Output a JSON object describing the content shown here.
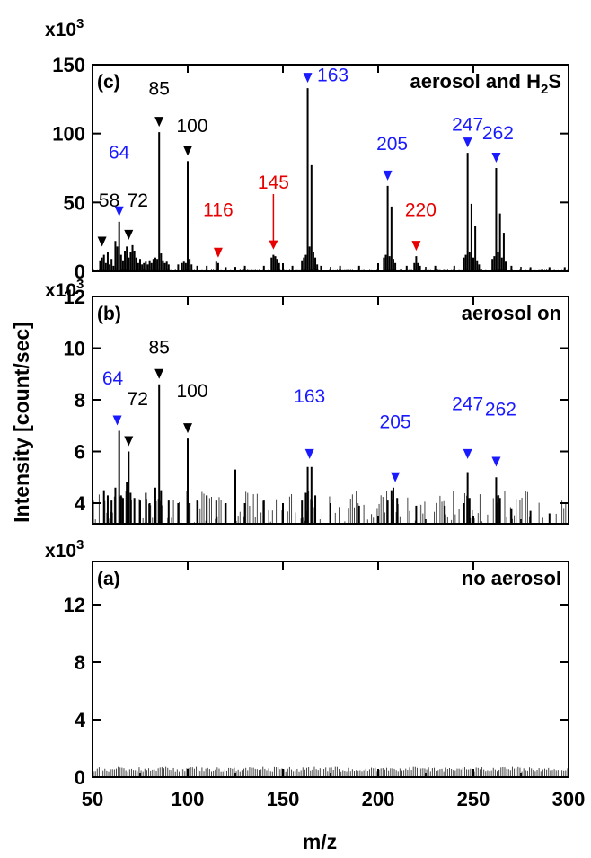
{
  "chart_data": {
    "type": "bar",
    "xlabel": "m/z",
    "ylabel": "Intensity [count/sec]",
    "xlim": [
      50,
      300
    ],
    "x_ticks": [
      "50",
      "100",
      "150",
      "200",
      "250",
      "300"
    ],
    "panels": [
      {
        "tag": "(c)",
        "condition": "aerosol and H",
        "condition_sub": "2",
        "condition_tail": "S",
        "multiplier": "x10",
        "multiplier_exp": "3",
        "ylim": [
          0,
          150
        ],
        "y_ticks": [
          "0",
          "50",
          "100",
          "150"
        ],
        "baseline": 1.5,
        "peaks": [
          {
            "x": 54,
            "y": 8
          },
          {
            "x": 55,
            "y": 10
          },
          {
            "x": 56,
            "y": 12
          },
          {
            "x": 57,
            "y": 6
          },
          {
            "x": 58,
            "y": 14
          },
          {
            "x": 59,
            "y": 5
          },
          {
            "x": 60,
            "y": 9
          },
          {
            "x": 61,
            "y": 4
          },
          {
            "x": 62,
            "y": 22
          },
          {
            "x": 63,
            "y": 18
          },
          {
            "x": 64,
            "y": 36
          },
          {
            "x": 65,
            "y": 12
          },
          {
            "x": 66,
            "y": 8
          },
          {
            "x": 67,
            "y": 15
          },
          {
            "x": 68,
            "y": 18
          },
          {
            "x": 69,
            "y": 10
          },
          {
            "x": 70,
            "y": 14
          },
          {
            "x": 71,
            "y": 19
          },
          {
            "x": 72,
            "y": 15
          },
          {
            "x": 73,
            "y": 10
          },
          {
            "x": 74,
            "y": 6
          },
          {
            "x": 75,
            "y": 9
          },
          {
            "x": 76,
            "y": 5
          },
          {
            "x": 77,
            "y": 6
          },
          {
            "x": 78,
            "y": 7
          },
          {
            "x": 79,
            "y": 5
          },
          {
            "x": 80,
            "y": 8
          },
          {
            "x": 81,
            "y": 6
          },
          {
            "x": 82,
            "y": 9
          },
          {
            "x": 83,
            "y": 10
          },
          {
            "x": 84,
            "y": 9
          },
          {
            "x": 85,
            "y": 101
          },
          {
            "x": 86,
            "y": 13
          },
          {
            "x": 87,
            "y": 8
          },
          {
            "x": 88,
            "y": 6
          },
          {
            "x": 89,
            "y": 7
          },
          {
            "x": 90,
            "y": 5
          },
          {
            "x": 95,
            "y": 5
          },
          {
            "x": 97,
            "y": 6
          },
          {
            "x": 98,
            "y": 7
          },
          {
            "x": 99,
            "y": 6
          },
          {
            "x": 100,
            "y": 80
          },
          {
            "x": 101,
            "y": 9
          },
          {
            "x": 102,
            "y": 5
          },
          {
            "x": 105,
            "y": 4
          },
          {
            "x": 110,
            "y": 4
          },
          {
            "x": 115,
            "y": 7
          },
          {
            "x": 116,
            "y": 6
          },
          {
            "x": 120,
            "y": 3
          },
          {
            "x": 125,
            "y": 3
          },
          {
            "x": 130,
            "y": 4
          },
          {
            "x": 140,
            "y": 4
          },
          {
            "x": 144,
            "y": 10
          },
          {
            "x": 145,
            "y": 12
          },
          {
            "x": 146,
            "y": 11
          },
          {
            "x": 147,
            "y": 9
          },
          {
            "x": 148,
            "y": 6
          },
          {
            "x": 150,
            "y": 5
          },
          {
            "x": 155,
            "y": 4
          },
          {
            "x": 160,
            "y": 8
          },
          {
            "x": 161,
            "y": 10
          },
          {
            "x": 162,
            "y": 12
          },
          {
            "x": 163,
            "y": 133
          },
          {
            "x": 164,
            "y": 18
          },
          {
            "x": 165,
            "y": 77
          },
          {
            "x": 166,
            "y": 14
          },
          {
            "x": 167,
            "y": 10
          },
          {
            "x": 168,
            "y": 5
          },
          {
            "x": 170,
            "y": 4
          },
          {
            "x": 180,
            "y": 4
          },
          {
            "x": 190,
            "y": 4
          },
          {
            "x": 200,
            "y": 4
          },
          {
            "x": 203,
            "y": 10
          },
          {
            "x": 204,
            "y": 12
          },
          {
            "x": 205,
            "y": 62
          },
          {
            "x": 206,
            "y": 11
          },
          {
            "x": 207,
            "y": 47
          },
          {
            "x": 208,
            "y": 9
          },
          {
            "x": 209,
            "y": 6
          },
          {
            "x": 215,
            "y": 4
          },
          {
            "x": 219,
            "y": 6
          },
          {
            "x": 220,
            "y": 11
          },
          {
            "x": 221,
            "y": 6
          },
          {
            "x": 222,
            "y": 4
          },
          {
            "x": 230,
            "y": 4
          },
          {
            "x": 240,
            "y": 4
          },
          {
            "x": 245,
            "y": 10
          },
          {
            "x": 246,
            "y": 12
          },
          {
            "x": 247,
            "y": 86
          },
          {
            "x": 248,
            "y": 14
          },
          {
            "x": 249,
            "y": 49
          },
          {
            "x": 250,
            "y": 10
          },
          {
            "x": 251,
            "y": 33
          },
          {
            "x": 252,
            "y": 8
          },
          {
            "x": 253,
            "y": 5
          },
          {
            "x": 260,
            "y": 9
          },
          {
            "x": 261,
            "y": 11
          },
          {
            "x": 262,
            "y": 75
          },
          {
            "x": 263,
            "y": 14
          },
          {
            "x": 264,
            "y": 42
          },
          {
            "x": 265,
            "y": 10
          },
          {
            "x": 266,
            "y": 28
          },
          {
            "x": 267,
            "y": 7
          },
          {
            "x": 270,
            "y": 4
          },
          {
            "x": 280,
            "y": 3
          },
          {
            "x": 290,
            "y": 3
          },
          {
            "x": 298,
            "y": 3
          }
        ],
        "annotations": [
          {
            "label": "58",
            "x": 55,
            "y": 14,
            "color": "#000000",
            "text_dx": 8,
            "text_y": 47
          },
          {
            "label": "64",
            "x": 64,
            "y": 36,
            "color": "#1a1aff",
            "text_dx": 0,
            "text_y": 82
          },
          {
            "label": "72",
            "x": 69,
            "y": 19,
            "color": "#000000",
            "text_dx": 10,
            "text_y": 47
          },
          {
            "label": "85",
            "x": 85,
            "y": 101,
            "color": "#000000",
            "text_dx": 0,
            "text_y": 128
          },
          {
            "label": "100",
            "x": 100,
            "y": 80,
            "color": "#000000",
            "text_dx": 5,
            "text_y": 101
          },
          {
            "label": "116",
            "x": 116,
            "y": 6,
            "color": "#e60000",
            "text_dx": 0,
            "text_y": 40
          },
          {
            "label": "145",
            "x": 145,
            "y": 12,
            "color": "#e60000",
            "text_dx": 0,
            "text_y": 60
          },
          {
            "label": "163",
            "x": 163,
            "y": 133,
            "color": "#1a1aff",
            "text_dx": 28,
            "text_y": 138
          },
          {
            "label": "205",
            "x": 205,
            "y": 62,
            "color": "#1a1aff",
            "text_dx": 5,
            "text_y": 88
          },
          {
            "label": "220",
            "x": 220,
            "y": 11,
            "color": "#e60000",
            "text_dx": 5,
            "text_y": 40
          },
          {
            "label": "247",
            "x": 247,
            "y": 86,
            "color": "#1a1aff",
            "text_dx": 0,
            "text_y": 102
          },
          {
            "label": "262",
            "x": 262,
            "y": 75,
            "color": "#1a1aff",
            "text_dx": 2,
            "text_y": 96
          }
        ]
      },
      {
        "tag": "(b)",
        "condition": "aerosol on",
        "multiplier": "x10",
        "multiplier_exp": "3",
        "ylim": [
          3.2,
          12
        ],
        "y_ticks": [
          "4",
          "6",
          "8",
          "10",
          "12"
        ],
        "baseline": 3.45,
        "peaks": [
          {
            "x": 56,
            "y": 4.5
          },
          {
            "x": 58,
            "y": 4.3
          },
          {
            "x": 60,
            "y": 4.1
          },
          {
            "x": 62,
            "y": 4.6
          },
          {
            "x": 64,
            "y": 6.8
          },
          {
            "x": 65,
            "y": 4.3
          },
          {
            "x": 66,
            "y": 4.2
          },
          {
            "x": 68,
            "y": 4.8
          },
          {
            "x": 69,
            "y": 6.0
          },
          {
            "x": 70,
            "y": 4.4
          },
          {
            "x": 72,
            "y": 4.2
          },
          {
            "x": 75,
            "y": 4.1
          },
          {
            "x": 78,
            "y": 4.4
          },
          {
            "x": 80,
            "y": 4.0
          },
          {
            "x": 83,
            "y": 4.6
          },
          {
            "x": 85,
            "y": 8.6
          },
          {
            "x": 86,
            "y": 4.5
          },
          {
            "x": 90,
            "y": 4.1
          },
          {
            "x": 95,
            "y": 4.0
          },
          {
            "x": 100,
            "y": 6.5
          },
          {
            "x": 101,
            "y": 4.0
          },
          {
            "x": 105,
            "y": 4.1
          },
          {
            "x": 110,
            "y": 4.3
          },
          {
            "x": 115,
            "y": 4.1
          },
          {
            "x": 120,
            "y": 4.0
          },
          {
            "x": 125,
            "y": 5.3
          },
          {
            "x": 130,
            "y": 4.0
          },
          {
            "x": 140,
            "y": 4.1
          },
          {
            "x": 150,
            "y": 4.0
          },
          {
            "x": 160,
            "y": 4.1
          },
          {
            "x": 162,
            "y": 4.4
          },
          {
            "x": 163,
            "y": 5.4
          },
          {
            "x": 165,
            "y": 5.4
          },
          {
            "x": 167,
            "y": 4.3
          },
          {
            "x": 175,
            "y": 4.0
          },
          {
            "x": 190,
            "y": 3.9
          },
          {
            "x": 205,
            "y": 4.1
          },
          {
            "x": 207,
            "y": 4.5
          },
          {
            "x": 208,
            "y": 4.6
          },
          {
            "x": 210,
            "y": 4.2
          },
          {
            "x": 220,
            "y": 3.9
          },
          {
            "x": 235,
            "y": 3.9
          },
          {
            "x": 245,
            "y": 4.0
          },
          {
            "x": 247,
            "y": 5.2
          },
          {
            "x": 248,
            "y": 4.2
          },
          {
            "x": 262,
            "y": 5.0
          },
          {
            "x": 263,
            "y": 4.3
          },
          {
            "x": 264,
            "y": 4.2
          },
          {
            "x": 270,
            "y": 3.8
          },
          {
            "x": 280,
            "y": 3.7
          },
          {
            "x": 290,
            "y": 3.6
          }
        ],
        "annotations": [
          {
            "label": "64",
            "x": 63,
            "y": 6.8,
            "color": "#1a1aff",
            "text_dx": -5,
            "text_y": 8.6
          },
          {
            "label": "72",
            "x": 69,
            "y": 6.0,
            "color": "#000000",
            "text_dx": 10,
            "text_y": 7.8
          },
          {
            "label": "85",
            "x": 85,
            "y": 8.6,
            "color": "#000000",
            "text_dx": 0,
            "text_y": 9.8
          },
          {
            "label": "100",
            "x": 100,
            "y": 6.5,
            "color": "#000000",
            "text_dx": 5,
            "text_y": 8.1
          },
          {
            "label": "163",
            "x": 164,
            "y": 5.5,
            "color": "#1a1aff",
            "text_dx": 0,
            "text_y": 7.9
          },
          {
            "label": "205",
            "x": 209,
            "y": 4.6,
            "color": "#1a1aff",
            "text_dx": 0,
            "text_y": 6.9
          },
          {
            "label": "247",
            "x": 247,
            "y": 5.5,
            "color": "#1a1aff",
            "text_dx": 0,
            "text_y": 7.6
          },
          {
            "label": "262",
            "x": 262,
            "y": 5.2,
            "color": "#1a1aff",
            "text_dx": 5,
            "text_y": 7.4
          }
        ]
      },
      {
        "tag": "(a)",
        "condition": "no aerosol",
        "multiplier": "x10",
        "multiplier_exp": "3",
        "ylim": [
          0,
          15
        ],
        "y_ticks": [
          "0",
          "4",
          "8",
          "12"
        ],
        "baseline": 0.55,
        "peaks": [],
        "annotations": []
      }
    ]
  }
}
